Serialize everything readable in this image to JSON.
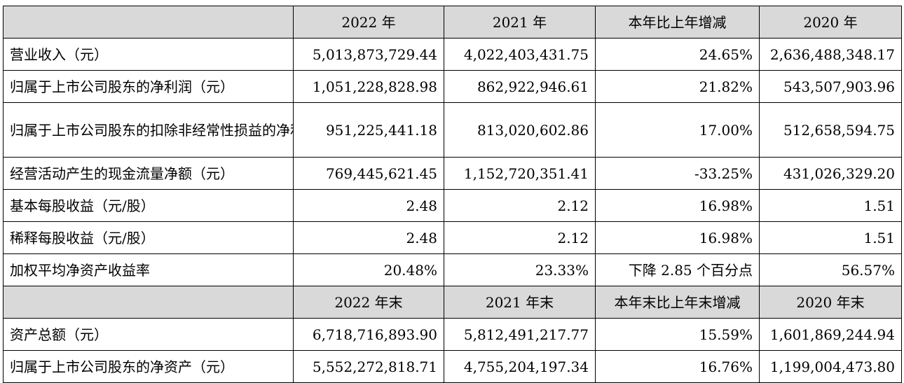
{
  "header1": {
    "label": "",
    "col1": "2022 年",
    "col2": "2021 年",
    "col3": "本年比上年增减",
    "col4": "2020 年"
  },
  "rows1": [
    {
      "label": "营业收入（元）",
      "v2022": "5,013,873,729.44",
      "v2021": "4,022,403,431.75",
      "change": "24.65%",
      "v2020": "2,636,488,348.17"
    },
    {
      "label": "归属于上市公司股东的净利润（元）",
      "v2022": "1,051,228,828.98",
      "v2021": "862,922,946.61",
      "change": "21.82%",
      "v2020": "543,507,903.96"
    },
    {
      "label": "归属于上市公司股东的扣除非经常性损益的净利润（元）",
      "v2022": "951,225,441.18",
      "v2021": "813,020,602.86",
      "change": "17.00%",
      "v2020": "512,658,594.75"
    },
    {
      "label": "经营活动产生的现金流量净额（元）",
      "v2022": "769,445,621.45",
      "v2021": "1,152,720,351.41",
      "change": "-33.25%",
      "v2020": "431,026,329.20"
    },
    {
      "label": "基本每股收益（元/股）",
      "v2022": "2.48",
      "v2021": "2.12",
      "change": "16.98%",
      "v2020": "1.51"
    },
    {
      "label": "稀释每股收益（元/股）",
      "v2022": "2.48",
      "v2021": "2.12",
      "change": "16.98%",
      "v2020": "1.51"
    },
    {
      "label": "加权平均净资产收益率",
      "v2022": "20.48%",
      "v2021": "23.33%",
      "change": "下降 2.85 个百分点",
      "v2020": "56.57%"
    }
  ],
  "header2": {
    "label": "",
    "col1": "2022 年末",
    "col2": "2021 年末",
    "col3": "本年末比上年末增减",
    "col4": "2020 年末"
  },
  "rows2": [
    {
      "label": "资产总额（元）",
      "v2022": "6,718,716,893.90",
      "v2021": "5,812,491,217.77",
      "change": "15.59%",
      "v2020": "1,601,869,244.94"
    },
    {
      "label": "归属于上市公司股东的净资产（元）",
      "v2022": "5,552,272,818.71",
      "v2021": "4,755,204,197.34",
      "change": "16.76%",
      "v2020": "1,199,004,473.80"
    }
  ]
}
